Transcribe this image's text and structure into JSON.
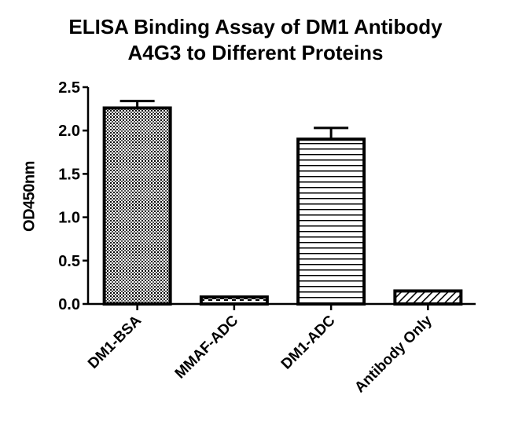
{
  "chart_data": {
    "type": "bar",
    "title": "ELISA Binding Assay of DM1 Antibody A4G3 to Different Proteins",
    "title_lines": [
      "ELISA Binding Assay of DM1 Antibody",
      "A4G3 to Different Proteins"
    ],
    "xlabel": "",
    "ylabel": "OD450nm",
    "ylim": [
      0,
      2.5
    ],
    "yticks": [
      "0.0",
      "0.5",
      "1.0",
      "1.5",
      "2.0",
      "2.5"
    ],
    "grid": false,
    "legend": null,
    "categories": [
      "DM1-BSA",
      "MMAF-ADC",
      "DM1-ADC",
      "Antibody Only"
    ],
    "values": [
      2.26,
      0.08,
      1.9,
      0.15
    ],
    "error_upper": [
      0.08,
      0.0,
      0.13,
      0.0
    ],
    "patterns": [
      "dense-dots",
      "checker-dashes",
      "horizontal-lines",
      "diagonal-hatch"
    ],
    "bar_color": "#000000",
    "background": "#ffffff"
  }
}
